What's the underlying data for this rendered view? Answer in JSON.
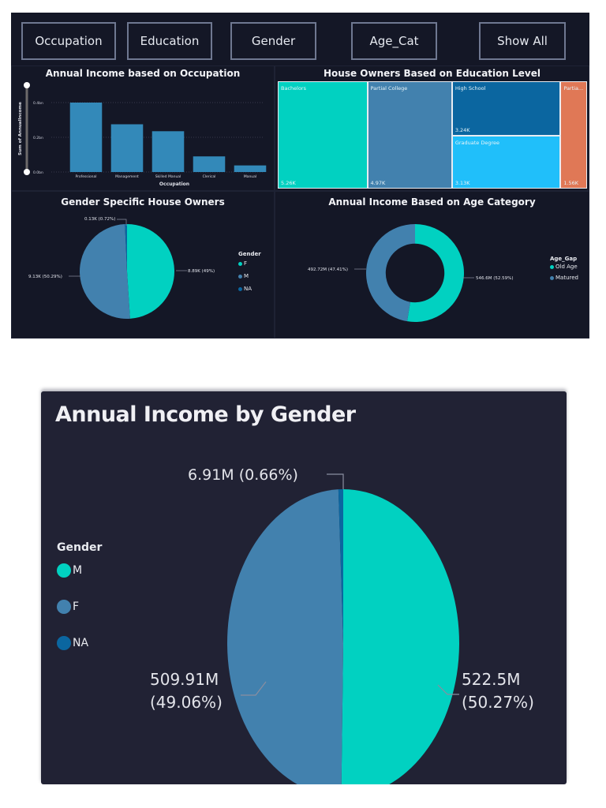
{
  "filters": {
    "buttons": [
      {
        "label": "Occupation"
      },
      {
        "label": "Education"
      },
      {
        "label": "Gender"
      },
      {
        "label": "Age_Cat"
      },
      {
        "label": "Show All"
      }
    ]
  },
  "colors": {
    "teal": "#01d1c1",
    "steel_blue": "#4281ae",
    "dark_blue": "#0b66a0",
    "sky_blue": "#20bffa",
    "orange": "#e07856",
    "bar_blue": "#3389b9",
    "panel_bg": "#141726",
    "card_bg": "#212234"
  },
  "chart_data": [
    {
      "id": "occupation-income",
      "type": "bar",
      "title": "Annual Income based on Occupation",
      "xlabel": "Occupation",
      "ylabel": "Sum of AnnualIncome",
      "categories": [
        "Professional",
        "Management",
        "Skilled Manual",
        "Clerical",
        "Manual"
      ],
      "values": [
        0.4,
        0.275,
        0.235,
        0.09,
        0.038
      ],
      "value_unit": "bn",
      "yticks": [
        "0.0bn",
        "0.2bn",
        "0.4bn"
      ],
      "ylim": [
        0,
        0.4
      ],
      "grid": true
    },
    {
      "id": "education-owners",
      "type": "treemap",
      "title": "House Owners Based on Education Level",
      "items": [
        {
          "label": "Bachelors",
          "display_label": "Bachelors",
          "value": 5.26,
          "value_label": "5.26K"
        },
        {
          "label": "Partial College",
          "display_label": "Partial College",
          "value": 4.97,
          "value_label": "4.97K"
        },
        {
          "label": "High School",
          "display_label": "High School",
          "value": 3.24,
          "value_label": "3.24K"
        },
        {
          "label": "Graduate Degree",
          "display_label": "Graduate Degree",
          "value": 3.13,
          "value_label": "3.13K"
        },
        {
          "label": "Partial High School",
          "display_label": "Partia...",
          "value": 1.56,
          "value_label": "1.56K"
        }
      ]
    },
    {
      "id": "gender-owners",
      "type": "pie",
      "title": "Gender Specific House Owners",
      "legend_title": "Gender",
      "legend_position": "right",
      "slices": [
        {
          "label": "F",
          "value": 8.89,
          "data_label": "8.89K (49%)"
        },
        {
          "label": "M",
          "value": 9.13,
          "data_label": "9.13K (50.29%)"
        },
        {
          "label": "NA",
          "value": 0.13,
          "data_label": "0.13K (0.72%)"
        }
      ]
    },
    {
      "id": "age-income",
      "type": "donut",
      "title": "Annual Income Based on Age Category",
      "legend_title": "Age_Gap",
      "legend_position": "right",
      "slices": [
        {
          "label": "Old Age",
          "value": 546.6,
          "data_label": "546.6M (52.59%)"
        },
        {
          "label": "Matured",
          "value": 492.72,
          "data_label": "492.72M (47.41%)"
        }
      ]
    },
    {
      "id": "gender-income",
      "type": "pie",
      "title": "Annual Income by Gender",
      "legend_title": "Gender",
      "legend_position": "left",
      "slices": [
        {
          "label": "M",
          "value": 522.5,
          "data_label_1": "522.5M",
          "data_label_2": "(50.27%)"
        },
        {
          "label": "F",
          "value": 509.91,
          "data_label_1": "509.91M",
          "data_label_2": "(49.06%)"
        },
        {
          "label": "NA",
          "value": 6.91,
          "data_label_1": "6.91M (0.66%)",
          "data_label_2": ""
        }
      ]
    }
  ]
}
